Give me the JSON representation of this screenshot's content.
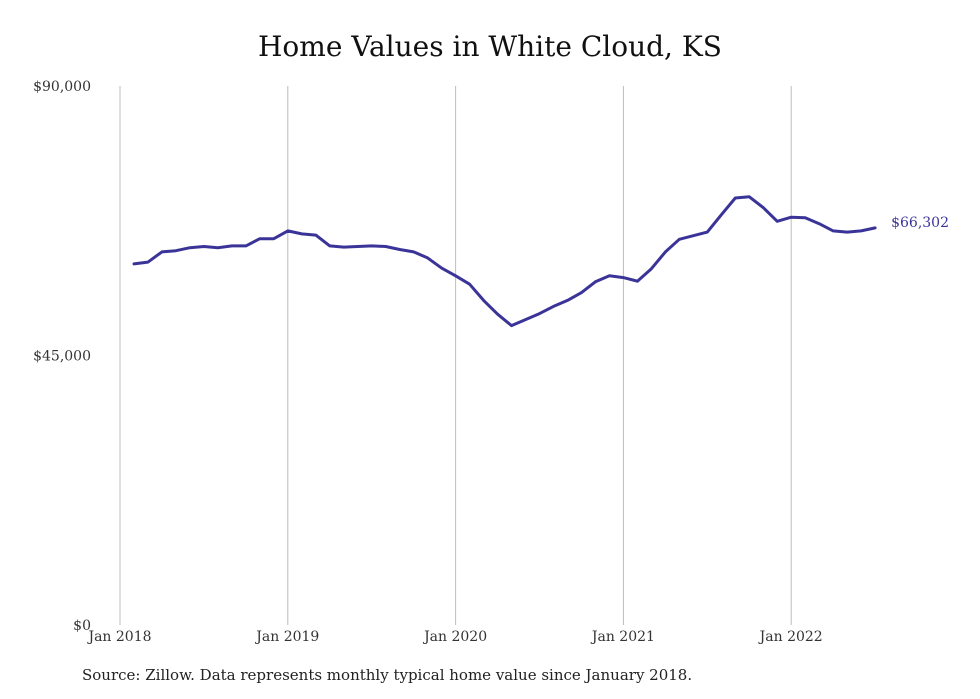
{
  "chart_data": {
    "type": "line",
    "title": "Home Values in White Cloud, KS",
    "xlabel": "",
    "ylabel": "",
    "x_tick_labels": [
      "Jan 2018",
      "Jan 2019",
      "Jan 2020",
      "Jan 2021",
      "Jan 2022"
    ],
    "y_tick_labels": [
      "$0",
      "$45,000",
      "$90,000"
    ],
    "y_ticks": [
      0,
      45000,
      90000
    ],
    "ylim": [
      0,
      90000
    ],
    "xlim": [
      "2018-01",
      "2022-10"
    ],
    "grid": "vertical",
    "legend": "none",
    "line_color": "#3b3498",
    "end_label": "$66,302",
    "series": [
      {
        "x": [
          "2018-02",
          "2018-03",
          "2018-04",
          "2018-05",
          "2018-06",
          "2018-07",
          "2018-08",
          "2018-09",
          "2018-10",
          "2018-11",
          "2018-12",
          "2019-01",
          "2019-02",
          "2019-03",
          "2019-04",
          "2019-05",
          "2019-06",
          "2019-07",
          "2019-08",
          "2019-09",
          "2019-10",
          "2019-11",
          "2019-12",
          "2020-01",
          "2020-02",
          "2020-03",
          "2020-04",
          "2020-05",
          "2020-06",
          "2020-07",
          "2020-08",
          "2020-09",
          "2020-10",
          "2020-11",
          "2020-12",
          "2021-01",
          "2021-02",
          "2021-03",
          "2021-04",
          "2021-05",
          "2021-06",
          "2021-07",
          "2021-08",
          "2021-09",
          "2021-10",
          "2021-11",
          "2021-12",
          "2022-01",
          "2022-02",
          "2022-03",
          "2022-04",
          "2022-05",
          "2022-06",
          "2022-07"
        ],
        "values": [
          60300,
          60600,
          62300,
          62500,
          63000,
          63200,
          63000,
          63300,
          63300,
          64500,
          64500,
          65800,
          65300,
          65100,
          63300,
          63100,
          63200,
          63300,
          63200,
          62700,
          62300,
          61300,
          59600,
          58300,
          56900,
          54200,
          51900,
          50000,
          51000,
          52000,
          53200,
          54200,
          55500,
          57300,
          58300,
          58000,
          57400,
          59500,
          62300,
          64400,
          65000,
          65600,
          68500,
          71300,
          71500,
          69700,
          67400,
          68100,
          68000,
          67000,
          65800,
          65600,
          65800,
          66302
        ]
      }
    ]
  },
  "source_note": "Source: Zillow. Data represents monthly typical home value since January 2018."
}
